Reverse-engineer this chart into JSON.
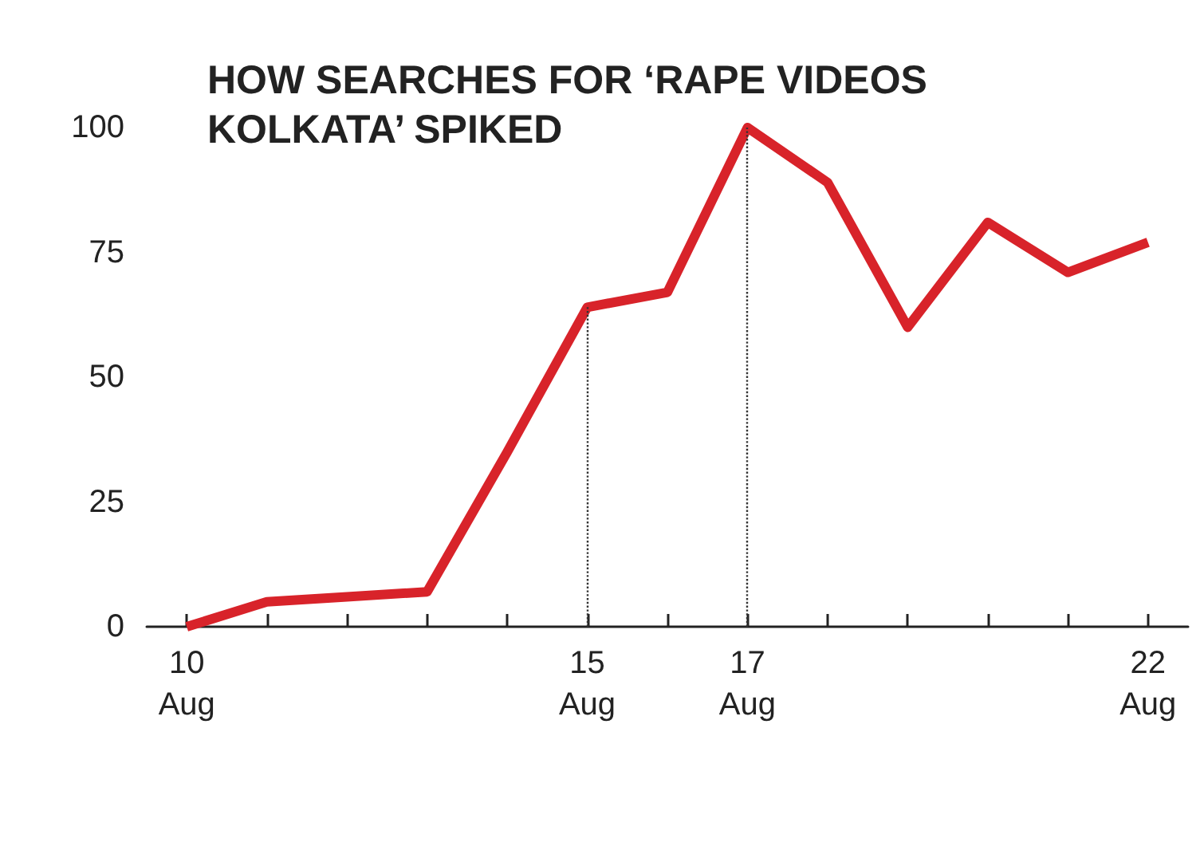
{
  "chart_data": {
    "type": "line",
    "title": "HOW SEARCHES FOR ‘RAPE VIDEOS\nKOLKATA’ SPIKED",
    "categories": [
      "10\nAug",
      null,
      null,
      null,
      null,
      "15\nAug",
      null,
      "17\nAug",
      null,
      null,
      null,
      null,
      "22\nAug"
    ],
    "series": [
      {
        "color": "#d8232a",
        "values": [
          0,
          5,
          6,
          7,
          35,
          64,
          67,
          100,
          89,
          60,
          81,
          71,
          77
        ]
      }
    ],
    "ylim": [
      0,
      100
    ],
    "yticks": [
      0,
      25,
      50,
      75,
      100
    ],
    "ref_lines": [
      {
        "axis": "x",
        "value": "15\nAug"
      },
      {
        "axis": "x",
        "value": "17\nAug"
      }
    ]
  }
}
